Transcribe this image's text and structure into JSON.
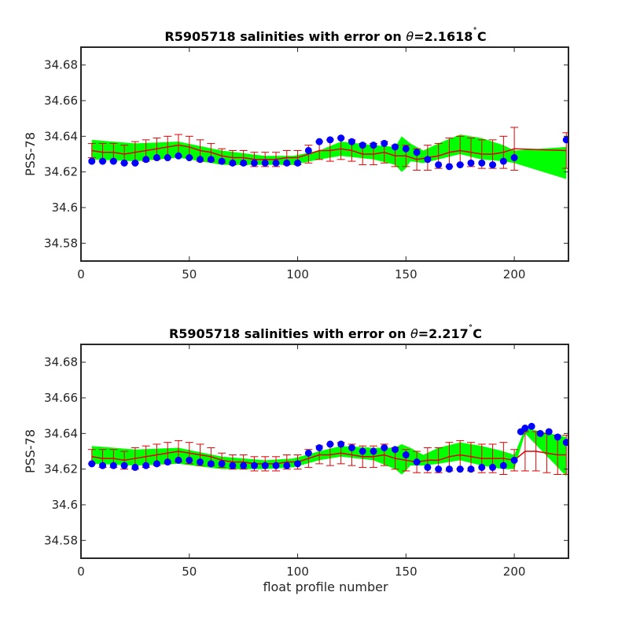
{
  "colors": {
    "obs_band": "#00ff00",
    "error_bar": "#e00000",
    "mapped_marker": "#0000ff",
    "axes": "#262626"
  },
  "chart_data": [
    {
      "type": "line",
      "title_text": "R5905718 salinities with error on ",
      "title_theta": "θ",
      "title_value": "=2.1618",
      "title_deg": "˚",
      "title_unit": "C",
      "xlabel": "",
      "ylabel": "PSS-78",
      "xlim": [
        0,
        225
      ],
      "ylim": [
        34.57,
        34.69
      ],
      "xticks": [
        0,
        50,
        100,
        150,
        200
      ],
      "yticks": [
        34.58,
        34.6,
        34.62,
        34.64,
        34.66,
        34.68
      ],
      "ytick_labels": [
        "34.58",
        "34.6",
        "34.62",
        "34.64",
        "34.66",
        "34.68"
      ],
      "grid": false,
      "green_band": {
        "x": [
          5,
          25,
          45,
          65,
          85,
          98,
          110,
          120,
          135,
          145,
          148,
          150,
          152,
          158,
          165,
          175,
          185,
          195,
          200,
          224
        ],
        "upper": [
          34.638,
          34.636,
          34.637,
          34.632,
          34.629,
          34.629,
          34.632,
          34.637,
          34.635,
          34.634,
          34.64,
          34.638,
          34.636,
          34.632,
          34.636,
          34.641,
          34.639,
          34.635,
          34.632,
          34.634
        ],
        "lower": [
          34.627,
          34.626,
          34.628,
          34.624,
          34.624,
          34.624,
          34.627,
          34.629,
          34.627,
          34.624,
          34.62,
          34.622,
          34.626,
          34.625,
          34.627,
          34.63,
          34.627,
          34.626,
          34.625,
          34.616
        ]
      },
      "error_bars": {
        "x": [
          5,
          10,
          15,
          20,
          25,
          30,
          35,
          40,
          45,
          50,
          55,
          60,
          65,
          70,
          75,
          80,
          85,
          90,
          95,
          100,
          105,
          110,
          115,
          120,
          125,
          130,
          135,
          140,
          145,
          150,
          155,
          160,
          165,
          170,
          175,
          180,
          185,
          190,
          195,
          200,
          224
        ],
        "center": [
          34.632,
          34.631,
          34.631,
          34.63,
          34.631,
          34.632,
          34.633,
          34.634,
          34.635,
          34.634,
          34.632,
          34.631,
          34.629,
          34.628,
          34.628,
          34.627,
          34.627,
          34.627,
          34.628,
          34.628,
          34.63,
          34.632,
          34.632,
          34.633,
          34.632,
          34.63,
          34.63,
          34.631,
          34.629,
          34.629,
          34.627,
          34.628,
          34.629,
          34.631,
          34.632,
          34.631,
          34.63,
          34.63,
          34.631,
          34.633,
          34.632
        ],
        "err": [
          0.004,
          0.005,
          0.005,
          0.005,
          0.006,
          0.006,
          0.006,
          0.006,
          0.006,
          0.006,
          0.006,
          0.005,
          0.004,
          0.004,
          0.004,
          0.004,
          0.004,
          0.004,
          0.004,
          0.004,
          0.005,
          0.005,
          0.006,
          0.006,
          0.006,
          0.006,
          0.006,
          0.006,
          0.006,
          0.006,
          0.006,
          0.007,
          0.007,
          0.008,
          0.008,
          0.008,
          0.008,
          0.008,
          0.009,
          0.012,
          0.01
        ]
      },
      "mapped_salinity": {
        "x": [
          5,
          10,
          15,
          20,
          25,
          30,
          35,
          40,
          45,
          50,
          55,
          60,
          65,
          70,
          75,
          80,
          85,
          90,
          95,
          100,
          105,
          110,
          115,
          120,
          125,
          130,
          135,
          140,
          145,
          150,
          155,
          160,
          165,
          170,
          175,
          180,
          185,
          190,
          195,
          200,
          224
        ],
        "y": [
          34.626,
          34.626,
          34.626,
          34.625,
          34.625,
          34.627,
          34.628,
          34.628,
          34.629,
          34.628,
          34.627,
          34.627,
          34.626,
          34.625,
          34.625,
          34.625,
          34.625,
          34.625,
          34.625,
          34.625,
          34.632,
          34.637,
          34.638,
          34.639,
          34.637,
          34.635,
          34.635,
          34.636,
          34.634,
          34.633,
          34.631,
          34.627,
          34.624,
          34.623,
          34.624,
          34.625,
          34.625,
          34.624,
          34.626,
          34.628,
          34.638
        ]
      }
    },
    {
      "type": "line",
      "title_text": "R5905718 salinities with error on ",
      "title_theta": "θ",
      "title_value": "=2.217",
      "title_deg": "˚",
      "title_unit": "C",
      "xlabel": "float profile number",
      "ylabel": "PSS-78",
      "xlim": [
        0,
        225
      ],
      "ylim": [
        34.57,
        34.69
      ],
      "xticks": [
        0,
        50,
        100,
        150,
        200
      ],
      "yticks": [
        34.58,
        34.6,
        34.62,
        34.64,
        34.66,
        34.68
      ],
      "ytick_labels": [
        "34.58",
        "34.6",
        "34.62",
        "34.64",
        "34.66",
        "34.68"
      ],
      "grid": false,
      "green_band": {
        "x": [
          5,
          25,
          45,
          65,
          85,
          98,
          110,
          120,
          135,
          145,
          148,
          150,
          152,
          158,
          165,
          175,
          185,
          195,
          200,
          205,
          224
        ],
        "upper": [
          34.633,
          34.631,
          34.632,
          34.627,
          34.625,
          34.626,
          34.63,
          34.633,
          34.632,
          34.632,
          34.634,
          34.633,
          34.632,
          34.628,
          34.632,
          34.635,
          34.633,
          34.63,
          34.628,
          34.643,
          34.638
        ],
        "lower": [
          34.623,
          34.622,
          34.623,
          34.62,
          34.62,
          34.621,
          34.625,
          34.627,
          34.625,
          34.62,
          34.617,
          34.619,
          34.622,
          34.622,
          34.623,
          34.625,
          34.622,
          34.62,
          34.62,
          34.64,
          34.616
        ]
      },
      "error_bars": {
        "x": [
          5,
          10,
          15,
          20,
          25,
          30,
          35,
          40,
          45,
          50,
          55,
          60,
          65,
          70,
          75,
          80,
          85,
          90,
          95,
          100,
          105,
          110,
          115,
          120,
          125,
          130,
          135,
          140,
          145,
          150,
          155,
          160,
          165,
          170,
          175,
          180,
          185,
          190,
          195,
          200,
          205,
          210,
          215,
          220,
          224
        ],
        "center": [
          34.627,
          34.626,
          34.626,
          34.625,
          34.626,
          34.627,
          34.628,
          34.629,
          34.63,
          34.629,
          34.628,
          34.627,
          34.625,
          34.624,
          34.624,
          34.623,
          34.623,
          34.623,
          34.624,
          34.624,
          34.626,
          34.628,
          34.628,
          34.629,
          34.628,
          34.627,
          34.627,
          34.628,
          34.626,
          34.625,
          34.624,
          34.625,
          34.625,
          34.627,
          34.628,
          34.627,
          34.626,
          34.626,
          34.626,
          34.625,
          34.63,
          34.63,
          34.629,
          34.628,
          34.628
        ],
        "err": [
          0.004,
          0.005,
          0.005,
          0.005,
          0.006,
          0.006,
          0.006,
          0.006,
          0.006,
          0.006,
          0.006,
          0.005,
          0.004,
          0.004,
          0.004,
          0.004,
          0.004,
          0.004,
          0.004,
          0.004,
          0.005,
          0.005,
          0.006,
          0.006,
          0.006,
          0.006,
          0.006,
          0.006,
          0.006,
          0.006,
          0.006,
          0.007,
          0.007,
          0.008,
          0.008,
          0.008,
          0.008,
          0.008,
          0.009,
          0.006,
          0.011,
          0.011,
          0.011,
          0.011,
          0.011
        ]
      },
      "mapped_salinity": {
        "x": [
          5,
          10,
          15,
          20,
          25,
          30,
          35,
          40,
          45,
          50,
          55,
          60,
          65,
          70,
          75,
          80,
          85,
          90,
          95,
          100,
          105,
          110,
          115,
          120,
          125,
          130,
          135,
          140,
          145,
          150,
          155,
          160,
          165,
          170,
          175,
          180,
          185,
          190,
          195,
          200,
          203,
          205,
          208,
          212,
          216,
          220,
          224
        ],
        "y": [
          34.623,
          34.622,
          34.622,
          34.622,
          34.621,
          34.622,
          34.623,
          34.624,
          34.625,
          34.625,
          34.624,
          34.623,
          34.623,
          34.622,
          34.622,
          34.622,
          34.622,
          34.622,
          34.622,
          34.623,
          34.629,
          34.632,
          34.634,
          34.634,
          34.632,
          34.63,
          34.63,
          34.632,
          34.631,
          34.628,
          34.624,
          34.621,
          34.62,
          34.62,
          34.62,
          34.62,
          34.621,
          34.621,
          34.622,
          34.625,
          34.641,
          34.643,
          34.644,
          34.64,
          34.641,
          34.638,
          34.635
        ]
      }
    }
  ]
}
